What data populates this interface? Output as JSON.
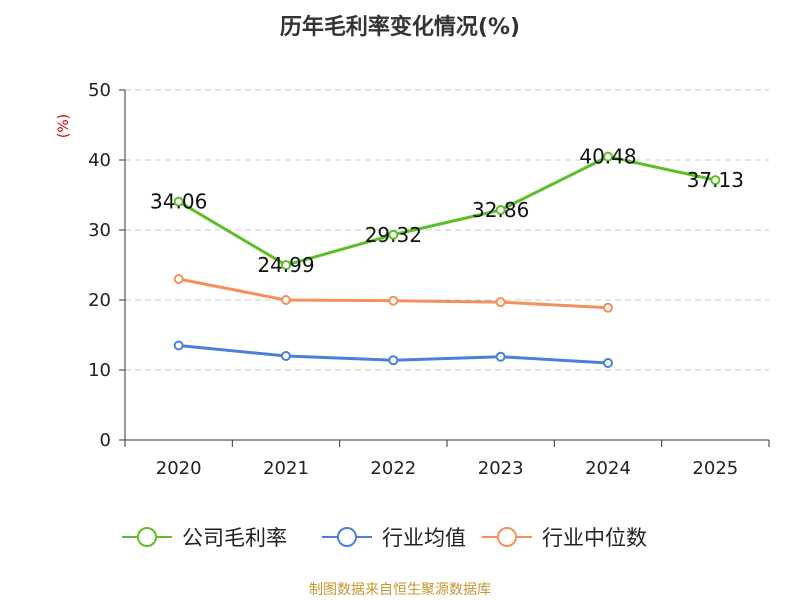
{
  "chart_data": {
    "type": "line",
    "title": "历年毛利率变化情况(%)",
    "ylabel": "(%)",
    "xlabel": "",
    "categories": [
      "2020",
      "2021",
      "2022",
      "2023",
      "2024",
      "2025"
    ],
    "ylim": [
      0,
      50
    ],
    "yticks": [
      0,
      10,
      20,
      30,
      40,
      50
    ],
    "grid": "horizontal dashed",
    "legend_position": "bottom",
    "series": [
      {
        "name": "公司毛利率",
        "color": "#5cbf2a",
        "values": [
          34.06,
          24.99,
          29.32,
          32.86,
          40.48,
          37.13
        ],
        "labels": [
          "34.06",
          "24.99",
          "29.32",
          "32.86",
          "40.48",
          "37.13"
        ],
        "show_labels": true
      },
      {
        "name": "行业均值",
        "color": "#4a7fdb",
        "values": [
          13.5,
          12.0,
          11.4,
          11.9,
          11.0,
          null
        ],
        "show_labels": false
      },
      {
        "name": "行业中位数",
        "color": "#f5905a",
        "values": [
          23.0,
          20.0,
          19.9,
          19.7,
          18.9,
          null
        ],
        "show_labels": false
      }
    ]
  },
  "footer": {
    "source": "制图数据来自恒生聚源数据库"
  }
}
